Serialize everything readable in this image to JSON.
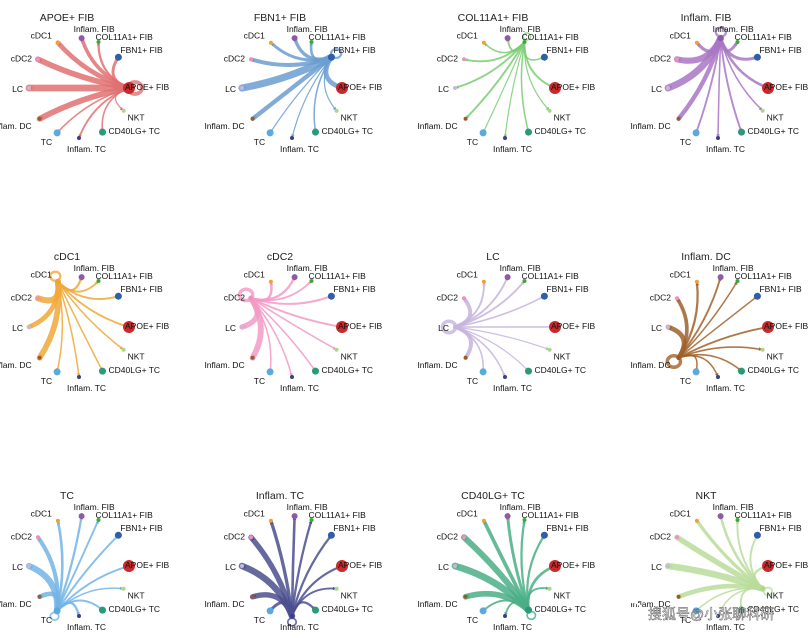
{
  "chart_data": {
    "type": "circle_network",
    "nodes": [
      {
        "name": "APOE+ FIB",
        "color": "#c8292b",
        "size": 6
      },
      {
        "name": "FBN1+ FIB",
        "color": "#2f5faa",
        "size": 3.5
      },
      {
        "name": "COL11A1+ FIB",
        "color": "#3aa93a",
        "size": 2
      },
      {
        "name": "Inflam. FIB",
        "color": "#8e5aa8",
        "size": 3
      },
      {
        "name": "cDC1",
        "color": "#f0a030",
        "size": 2
      },
      {
        "name": "cDC2",
        "color": "#f08fc0",
        "size": 2
      },
      {
        "name": "LC",
        "color": "#c9b6dc",
        "size": 2
      },
      {
        "name": "Inflam. DC",
        "color": "#9a5a2a",
        "size": 2
      },
      {
        "name": "TC",
        "color": "#5aaae0",
        "size": 3.5
      },
      {
        "name": "Inflam. TC",
        "color": "#3a3f82",
        "size": 2
      },
      {
        "name": "CD40LG+ TC",
        "color": "#2a9a78",
        "size": 3.5
      },
      {
        "name": "NKT",
        "color": "#a8d88a",
        "size": 2
      }
    ],
    "panels": [
      {
        "title": "APOE+ FIB",
        "source": 0,
        "color": "#e07070",
        "weights": [
          1.0,
          0.35,
          0.25,
          0.45,
          0.6,
          0.75,
          0.9,
          0.75,
          0.15,
          0.2,
          0.15,
          0.1
        ]
      },
      {
        "title": "FBN1+ FIB",
        "source": 1,
        "color": "#6a9ed0",
        "weights": [
          0.6,
          0.5,
          0.3,
          0.4,
          0.35,
          0.5,
          0.95,
          0.55,
          0.1,
          0.1,
          0.15,
          0.1
        ]
      },
      {
        "title": "COL11A1+ FIB",
        "source": 2,
        "color": "#7acc72",
        "weights": [
          0.2,
          0.15,
          0.2,
          0.2,
          0.15,
          0.2,
          0.2,
          0.2,
          0.1,
          0.1,
          0.15,
          0.1
        ]
      },
      {
        "title": "Inflam. FIB",
        "source": 3,
        "color": "#a877c4",
        "weights": [
          0.3,
          0.35,
          0.35,
          0.5,
          0.4,
          0.8,
          0.9,
          0.55,
          0.2,
          0.15,
          0.2,
          0.15
        ]
      },
      {
        "title": "cDC1",
        "source": 4,
        "color": "#f0a838",
        "weights": [
          0.2,
          0.2,
          0.2,
          0.25,
          0.5,
          0.8,
          0.6,
          0.75,
          0.15,
          0.15,
          0.15,
          0.15
        ]
      },
      {
        "title": "cDC2",
        "source": 5,
        "color": "#f29ac6",
        "weights": [
          0.2,
          0.2,
          0.2,
          0.25,
          0.3,
          0.9,
          0.7,
          0.75,
          0.15,
          0.15,
          0.15,
          0.15
        ]
      },
      {
        "title": "LC",
        "source": 6,
        "color": "#c6b4dc",
        "weights": [
          0.15,
          0.15,
          0.2,
          0.2,
          0.2,
          0.5,
          0.9,
          0.5,
          0.15,
          0.15,
          0.1,
          0.1
        ]
      },
      {
        "title": "Inflam. DC",
        "source": 7,
        "color": "#a0622a",
        "weights": [
          0.2,
          0.15,
          0.15,
          0.2,
          0.25,
          0.45,
          0.6,
          0.9,
          0.15,
          0.15,
          0.15,
          0.15
        ]
      },
      {
        "title": "TC",
        "source": 8,
        "color": "#72b4e4",
        "weights": [
          0.2,
          0.2,
          0.2,
          0.25,
          0.3,
          0.5,
          0.8,
          0.6,
          0.3,
          0.25,
          0.2,
          0.15
        ]
      },
      {
        "title": "Inflam. TC",
        "source": 9,
        "color": "#4a4f8e",
        "weights": [
          0.25,
          0.25,
          0.25,
          0.3,
          0.4,
          0.7,
          0.85,
          0.7,
          0.35,
          0.3,
          0.25,
          0.2
        ]
      },
      {
        "title": "CD40LG+ TC",
        "source": 10,
        "color": "#4aae86",
        "weights": [
          0.3,
          0.25,
          0.25,
          0.35,
          0.45,
          0.8,
          0.9,
          0.75,
          0.2,
          0.2,
          0.3,
          0.2
        ]
      },
      {
        "title": "NKT",
        "source": 11,
        "color": "#b9dc9a",
        "weights": [
          0.25,
          0.2,
          0.2,
          0.3,
          0.4,
          0.7,
          0.85,
          0.6,
          0.15,
          0.15,
          0.2,
          0.3
        ]
      }
    ]
  },
  "watermark": "搜狐号@小张聊科研"
}
